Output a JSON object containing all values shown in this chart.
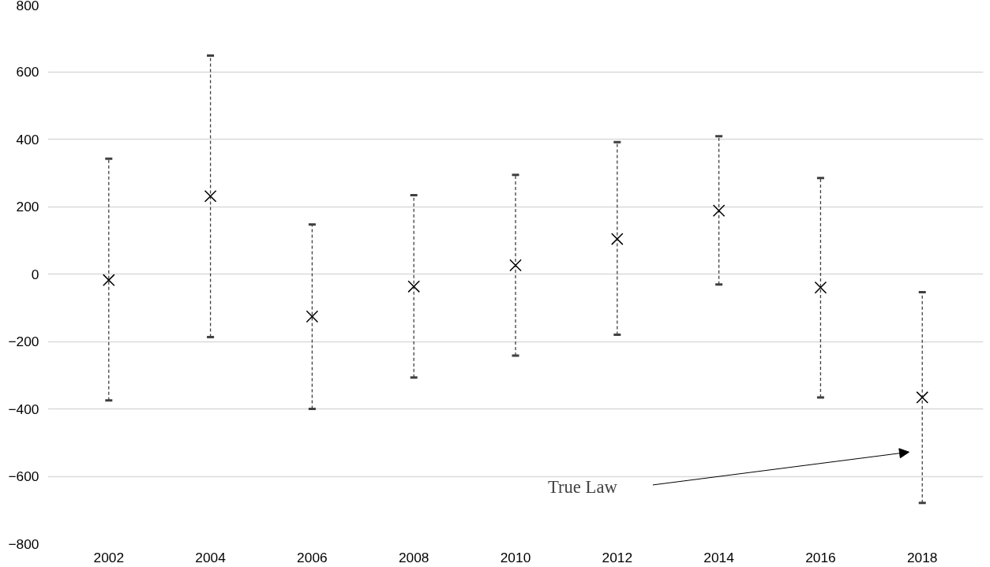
{
  "chart_data": {
    "type": "scatter",
    "categories": [
      "2002",
      "2004",
      "2006",
      "2008",
      "2010",
      "2012",
      "2014",
      "2016",
      "2018"
    ],
    "series": [
      {
        "color": "#000000",
        "values": [
          -18,
          231,
          -126,
          -37,
          26,
          104,
          188,
          -40,
          -366
        ],
        "errors": [
          [
            -375,
            342
          ],
          [
            -187,
            648
          ],
          [
            -400,
            147
          ],
          [
            -307,
            234
          ],
          [
            -242,
            294
          ],
          [
            -180,
            391
          ],
          [
            -31,
            409
          ],
          [
            -366,
            285
          ],
          [
            -679,
            -54
          ]
        ]
      }
    ],
    "marker": "cross",
    "ylim": [
      -800,
      800
    ],
    "yticks": [
      -800,
      -600,
      -400,
      -200,
      0,
      200,
      400,
      600,
      800
    ],
    "grid": "y",
    "annotations": [
      "True Law"
    ]
  }
}
